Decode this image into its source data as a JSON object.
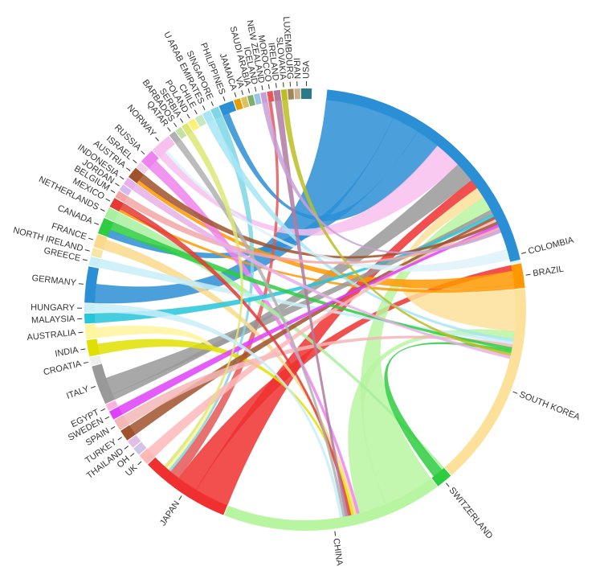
{
  "chart_data": {
    "type": "chord",
    "groups": [
      {
        "name": "USA",
        "share": 0.65,
        "color": "#2b7a85"
      },
      {
        "name": "IRAN",
        "share": 0.35,
        "color": "#c9b08a"
      },
      {
        "name": "LUXEMBOURG",
        "share": 0.35,
        "color": "#a0845c"
      },
      {
        "name": "SLOVAKIA",
        "share": 0.35,
        "color": "#bcbd22"
      },
      {
        "name": "IRELAND",
        "share": 0.4,
        "color": "#b07aa1"
      },
      {
        "name": "MOROCCO",
        "share": 0.35,
        "color": "#e45756"
      },
      {
        "name": "NEW ZEALAND",
        "share": 0.35,
        "color": "#c8a0d8"
      },
      {
        "name": "ICELAND",
        "share": 0.35,
        "color": "#9ac5ea"
      },
      {
        "name": "SAUDI ARABIA",
        "share": 0.35,
        "color": "#7fb069"
      },
      {
        "name": "VA",
        "share": 0.35,
        "color": "#d9c25f"
      },
      {
        "name": "JAMAICA",
        "share": 0.4,
        "color": "#e69f00"
      },
      {
        "name": "PHILIPPINES",
        "share": 0.9,
        "color": "#2b8fd6"
      },
      {
        "name": "SINGAPORE",
        "share": 0.5,
        "color": "#7ed6e6"
      },
      {
        "name": "U ARAB EMIRATES",
        "share": 0.5,
        "color": "#a6e6f5"
      },
      {
        "name": "CHILE",
        "share": 0.45,
        "color": "#c7e9c0"
      },
      {
        "name": "POLAND",
        "share": 0.45,
        "color": "#fff176"
      },
      {
        "name": "SERBIA",
        "share": 0.4,
        "color": "#dce775"
      },
      {
        "name": "BARBADOS",
        "share": 0.4,
        "color": "#c5e1a5"
      },
      {
        "name": "QATAR",
        "share": 0.4,
        "color": "#b0b0b0"
      },
      {
        "name": "NORWAY",
        "share": 1.3,
        "color": "#f8c0ef"
      },
      {
        "name": "RUSSIA",
        "share": 0.9,
        "color": "#ee82ee"
      },
      {
        "name": "ISRAEL",
        "share": 0.4,
        "color": "#f0d0e8"
      },
      {
        "name": "AUSTRIA",
        "share": 0.7,
        "color": "#a0522d"
      },
      {
        "name": "INDONESIA",
        "share": 0.45,
        "color": "#e8b0e8"
      },
      {
        "name": "JORDAN",
        "share": 0.4,
        "color": "#d8b8f0"
      },
      {
        "name": "BELGIUM",
        "share": 0.45,
        "color": "#f4a6a6"
      },
      {
        "name": "MEXICO",
        "share": 0.6,
        "color": "#e53935"
      },
      {
        "name": "NETHERLANDS",
        "share": 0.65,
        "color": "#a8f0a0"
      },
      {
        "name": "CANADA",
        "share": 1.0,
        "color": "#2ecc40"
      },
      {
        "name": "FRANCE",
        "share": 0.8,
        "color": "#fad98c"
      },
      {
        "name": "NORTH IRELAND",
        "share": 0.5,
        "color": "#f5e6a8"
      },
      {
        "name": "GREECE",
        "share": 0.55,
        "color": "#c8eef8"
      },
      {
        "name": "GERMANY",
        "share": 2.2,
        "color": "#2b8fd6"
      },
      {
        "name": "HUNGARY",
        "share": 0.55,
        "color": "#c8eef8"
      },
      {
        "name": "MALAYSIA",
        "share": 0.6,
        "color": "#26c6da"
      },
      {
        "name": "AUSTRALIA",
        "share": 0.9,
        "color": "#fff59d"
      },
      {
        "name": "INDIA",
        "share": 1.0,
        "color": "#e0e000"
      },
      {
        "name": "CROATIA",
        "share": 0.5,
        "color": "#eeeeee"
      },
      {
        "name": "ITALY",
        "share": 2.4,
        "color": "#999999"
      },
      {
        "name": "EGYPT",
        "share": 0.4,
        "color": "#ffb0e0"
      },
      {
        "name": "SWEDEN",
        "share": 0.55,
        "color": "#e040fb"
      },
      {
        "name": "SPAIN",
        "share": 0.7,
        "color": "#f4b6b6"
      },
      {
        "name": "TURKEY",
        "share": 0.7,
        "color": "#a0522d"
      },
      {
        "name": "THAILAND",
        "share": 0.5,
        "color": "#e1bee7"
      },
      {
        "name": "OH",
        "share": 0.5,
        "color": "#d1c4e9"
      },
      {
        "name": "UK",
        "share": 0.7,
        "color": "#ffb8b8"
      },
      {
        "name": "JAPAN",
        "share": 5.5,
        "color": "#f03030"
      },
      {
        "name": "CHINA",
        "share": 13.5,
        "color": "#b8f5a0"
      },
      {
        "name": "SWITZERLAND",
        "share": 1.0,
        "color": "#2ecc40"
      },
      {
        "name": "SOUTH KOREA",
        "share": 12.5,
        "color": "#fde09a"
      },
      {
        "name": "BRAZIL",
        "share": 1.5,
        "color": "#ff9800"
      },
      {
        "name": "COLOMBIA",
        "share": 1.0,
        "color": "#dff2fa"
      },
      {
        "name": "USA_MAIN",
        "share": 16.5,
        "color": "#2b8fd6",
        "display": ""
      }
    ],
    "links": [
      [
        "USA_MAIN",
        "GERMANY",
        2.0,
        "#2b8fd6"
      ],
      [
        "USA_MAIN",
        "CANADA",
        0.8,
        "#2b8fd6"
      ],
      [
        "USA_MAIN",
        "PHILIPPINES",
        0.7,
        "#2b8fd6"
      ],
      [
        "USA_MAIN",
        "NORWAY",
        0.8,
        "#f8c0ef"
      ],
      [
        "USA_MAIN",
        "ITALY",
        0.6,
        "#999999"
      ],
      [
        "JAPAN",
        "USA_MAIN",
        1.0,
        "#f03030"
      ],
      [
        "JAPAN",
        "BRAZIL",
        0.6,
        "#f03030"
      ],
      [
        "JAPAN",
        "MOROCCO",
        0.3,
        "#e45756"
      ],
      [
        "SOUTH KOREA",
        "USA_MAIN",
        1.2,
        "#fde09a"
      ],
      [
        "CHINA",
        "USA_MAIN",
        1.5,
        "#b8f5a0"
      ],
      [
        "CHINA",
        "SOUTH KOREA",
        0.8,
        "#b8f5a0"
      ],
      [
        "BRAZIL",
        "AUSTRIA",
        0.4,
        "#ff9800"
      ],
      [
        "BRAZIL",
        "MEXICO",
        0.3,
        "#ff9800"
      ],
      [
        "ITALY",
        "USA_MAIN",
        0.5,
        "#999999"
      ],
      [
        "RUSSIA",
        "CHINA",
        0.3,
        "#ee82ee"
      ],
      [
        "SINGAPORE",
        "JAPAN",
        0.3,
        "#7ed6e6"
      ],
      [
        "U ARAB EMIRATES",
        "SOUTH KOREA",
        0.3,
        "#a6e6f5"
      ],
      [
        "NETHERLANDS",
        "SWITZERLAND",
        0.3,
        "#a8f0a0"
      ],
      [
        "FRANCE",
        "CHINA",
        0.3,
        "#fad98c"
      ],
      [
        "GREECE",
        "SOUTH KOREA",
        0.3,
        "#c8eef8"
      ],
      [
        "MALAYSIA",
        "USA_MAIN",
        0.3,
        "#26c6da"
      ],
      [
        "AUSTRALIA",
        "JAPAN",
        0.3,
        "#fff59d"
      ],
      [
        "INDIA",
        "CHINA",
        0.3,
        "#e0e000"
      ],
      [
        "TURKEY",
        "USA_MAIN",
        0.3,
        "#a0522d"
      ],
      [
        "SPAIN",
        "SOUTH KOREA",
        0.3,
        "#f4b6b6"
      ],
      [
        "UK",
        "USA_MAIN",
        0.3,
        "#ffb8b8"
      ],
      [
        "CANADA",
        "SOUTH KOREA",
        0.3,
        "#2ecc40"
      ],
      [
        "MEXICO",
        "CHINA",
        0.3,
        "#e53935"
      ],
      [
        "AUSTRIA",
        "USA_MAIN",
        0.3,
        "#a0522d"
      ],
      [
        "SWITZERLAND",
        "SOUTH KOREA",
        0.3,
        "#2ecc40"
      ],
      [
        "COLOMBIA",
        "NORWAY",
        0.3,
        "#dff2fa"
      ],
      [
        "SWEDEN",
        "USA_MAIN",
        0.3,
        "#e040fb"
      ],
      [
        "IRELAND",
        "CHINA",
        0.3,
        "#b07aa1"
      ],
      [
        "SLOVAKIA",
        "SOUTH KOREA",
        0.3,
        "#bcbd22"
      ],
      [
        "QATAR",
        "CHINA",
        0.3,
        "#b0b0b0"
      ],
      [
        "SERBIA",
        "JAPAN",
        0.3,
        "#dce775"
      ],
      [
        "BELGIUM",
        "USA_MAIN",
        0.3,
        "#f4a6a6"
      ],
      [
        "INDONESIA",
        "SOUTH KOREA",
        0.3,
        "#e8b0e8"
      ],
      [
        "HUNGARY",
        "CHINA",
        0.3,
        "#c8eef8"
      ],
      [
        "NEW ZEALAND",
        "USA_MAIN",
        0.3,
        "#c8a0d8"
      ]
    ]
  }
}
